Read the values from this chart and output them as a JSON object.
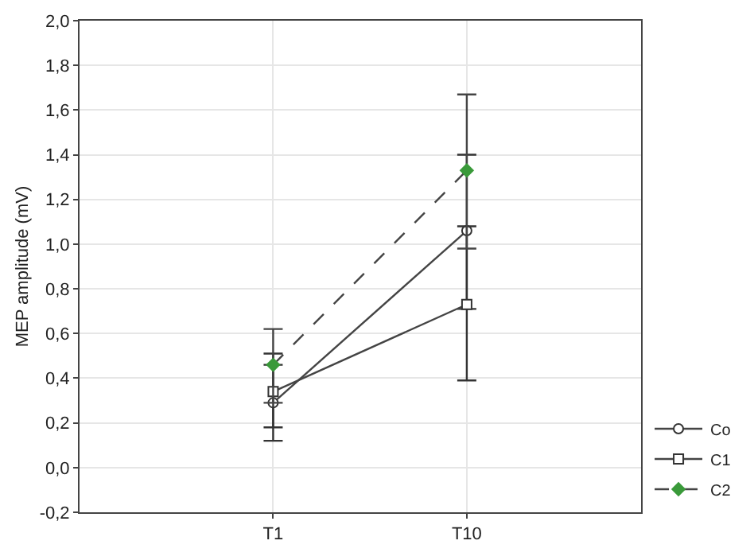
{
  "chart_data": {
    "type": "line",
    "ylabel": "MEP amplitude (mV)",
    "categories": [
      "T1",
      "T10"
    ],
    "series": [
      {
        "name": "Co",
        "color": "#333333",
        "values": [
          0.29,
          1.06
        ],
        "errors": [
          [
            0.12,
            0.46
          ],
          [
            0.71,
            1.4
          ]
        ],
        "marker": "circle",
        "line_style": "solid"
      },
      {
        "name": "C1",
        "color": "#333333",
        "values": [
          0.34,
          0.73
        ],
        "errors": [
          [
            0.18,
            0.51
          ],
          [
            0.39,
            1.08
          ]
        ],
        "marker": "square",
        "line_style": "solid"
      },
      {
        "name": "C2",
        "color": "#3a9a3a",
        "values": [
          0.46,
          1.33
        ],
        "errors": [
          [
            0.29,
            0.62
          ],
          [
            0.98,
            1.67
          ]
        ],
        "marker": "diamond",
        "line_style": "dashed"
      }
    ],
    "ylim": [
      -0.2,
      2.0
    ],
    "yticks": [
      {
        "value": -0.2,
        "label": "-0,2"
      },
      {
        "value": 0,
        "label": "0,0"
      },
      {
        "value": 0.2,
        "label": "0,2"
      },
      {
        "value": 0.4,
        "label": "0,4"
      },
      {
        "value": 0.6,
        "label": "0,6"
      },
      {
        "value": 0.8,
        "label": "0,8"
      },
      {
        "value": 1.0,
        "label": "1,0"
      },
      {
        "value": 1.2,
        "label": "1,2"
      },
      {
        "value": 1.4,
        "label": "1,4"
      },
      {
        "value": 1.6,
        "label": "1,6"
      },
      {
        "value": 1.8,
        "label": "1,8"
      },
      {
        "value": 2.0,
        "label": "2,0"
      }
    ],
    "grid": true,
    "legend": "bottom right"
  }
}
